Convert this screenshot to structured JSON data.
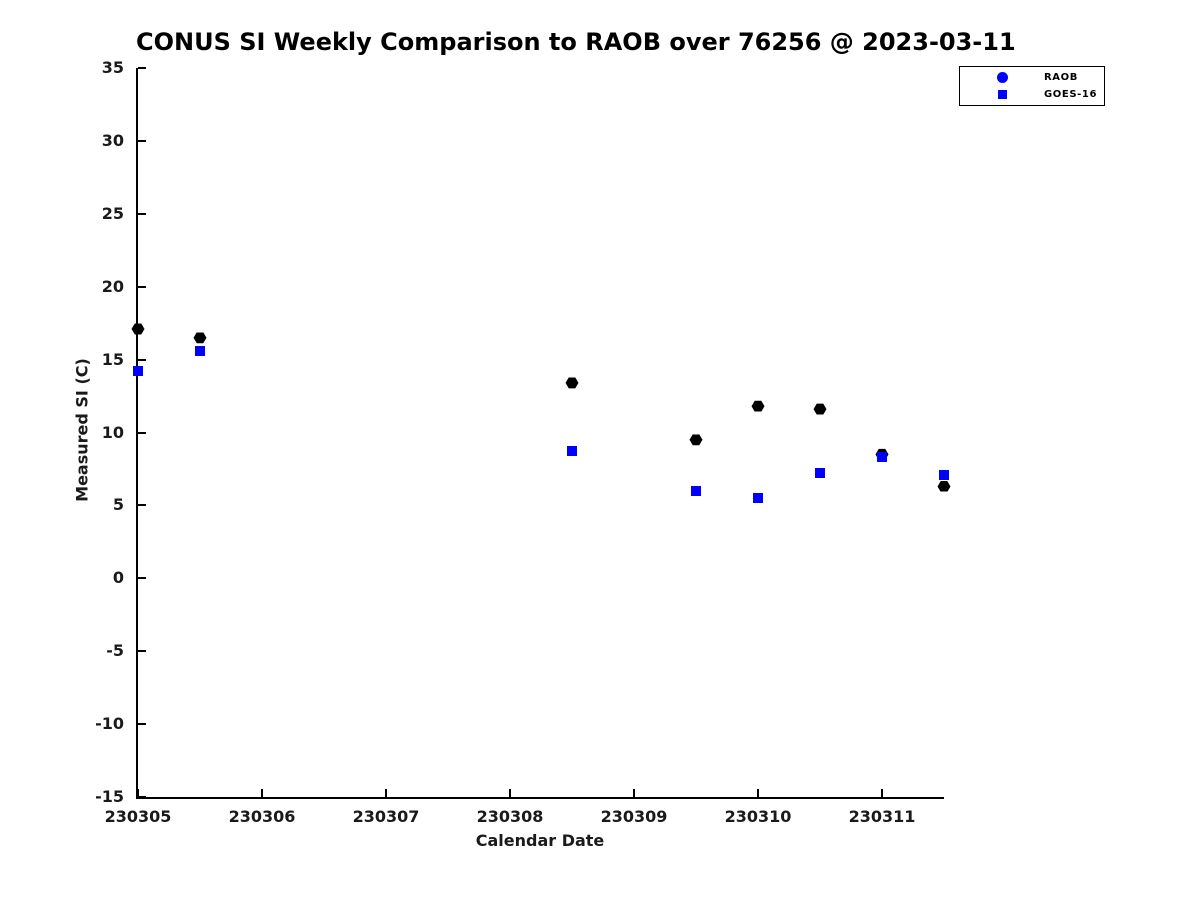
{
  "chart_data": {
    "type": "scatter",
    "title": "CONUS SI Weekly Comparison to RAOB over 76256 @ 2023-03-11",
    "xlabel": "Calendar Date",
    "ylabel": "Measured SI (C)",
    "xlim": [
      230305,
      230311.5
    ],
    "ylim": [
      -15,
      35
    ],
    "x_ticks": [
      230305,
      230306,
      230307,
      230308,
      230309,
      230310,
      230311
    ],
    "y_ticks": [
      35,
      30,
      25,
      20,
      15,
      10,
      5,
      0,
      -5,
      -10,
      -15
    ],
    "grid": false,
    "background": "#ffffff",
    "legend": {
      "position": "top-right",
      "entries": [
        {
          "label": "RAOB",
          "marker": "circle",
          "color": "#0000ff"
        },
        {
          "label": "GOES-16",
          "marker": "square",
          "color": "#0000ff"
        }
      ]
    },
    "series": [
      {
        "name": "RAOB",
        "marker": "hexagon",
        "color": "#000000",
        "x": [
          230305.0,
          230305.5,
          230308.5,
          230309.5,
          230310.0,
          230310.5,
          230311.0,
          230311.5
        ],
        "y": [
          17.1,
          16.5,
          13.4,
          9.5,
          11.8,
          11.6,
          8.5,
          6.3
        ]
      },
      {
        "name": "GOES-16",
        "marker": "square",
        "color": "#0000ff",
        "x": [
          230305.0,
          230305.5,
          230308.5,
          230309.5,
          230310.0,
          230310.5,
          230311.0,
          230311.5
        ],
        "y": [
          14.2,
          15.6,
          8.7,
          6.0,
          5.5,
          7.2,
          8.3,
          7.1
        ]
      }
    ]
  }
}
